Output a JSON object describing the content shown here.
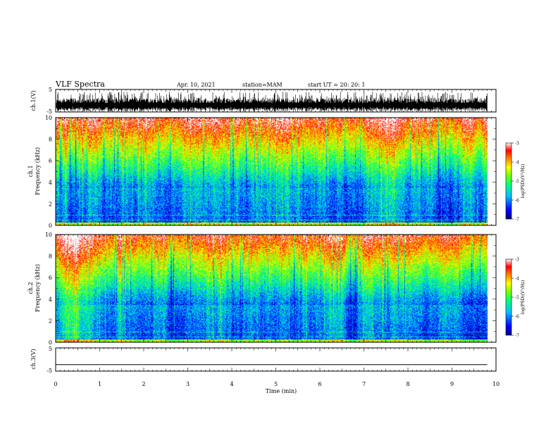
{
  "header": {
    "title": "VLF Spectra",
    "date": "Apr. 10, 2021",
    "station": "station=MAM",
    "start": "start  UT =   20: 20: 1"
  },
  "chart_data": [
    {
      "type": "line",
      "panel": "ch1-waveform",
      "ylabel": "ch.1(V)",
      "ylim": [
        -5,
        5
      ],
      "yticks": [
        "5",
        "-5"
      ],
      "xlim": [
        0,
        10
      ],
      "description_of_signal": "dense noisy waveform"
    },
    {
      "type": "heatmap",
      "panel": "ch1-spectrogram",
      "ylabel": "ch.1 Frequency (kHz)",
      "ylim": [
        0,
        10
      ],
      "yticks": [
        "0",
        "2",
        "4",
        "6",
        "8",
        "10"
      ],
      "xlim": [
        0,
        9.8
      ],
      "colorbar": {
        "label": "log(PSD)(V²/Hz)",
        "range": [
          -7,
          -3
        ],
        "ticks": [
          "-3",
          "-4",
          "-5",
          "-6",
          "-7"
        ]
      }
    },
    {
      "type": "heatmap",
      "panel": "ch2-spectrogram",
      "ylabel": "ch.2 Frequency (kHz)",
      "ylim": [
        0,
        10
      ],
      "yticks": [
        "0",
        "2",
        "4",
        "6",
        "8",
        "10"
      ],
      "xlim": [
        0,
        9.8
      ],
      "colorbar": {
        "label": "log(PSD)(V²/Hz)",
        "range": [
          -7,
          -3
        ],
        "ticks": [
          "-3",
          "-4",
          "-5",
          "-6",
          "-7"
        ]
      }
    },
    {
      "type": "line",
      "panel": "ch3-waveform",
      "ylabel": "ch.3(V)",
      "ylim": [
        -5,
        5
      ],
      "yticks": [
        "5",
        "-5"
      ],
      "series": [
        {
          "x": [
            0,
            9.8
          ],
          "values": [
            -2.2,
            -2.2
          ]
        }
      ]
    }
  ],
  "xaxis": {
    "label": "Time (min)",
    "ticks": [
      "0",
      "1",
      "2",
      "3",
      "4",
      "5",
      "6",
      "7",
      "8",
      "9",
      "10"
    ],
    "range": [
      0,
      10
    ]
  },
  "colors": {
    "colormap": [
      "#000080",
      "#0000ff",
      "#00c0ff",
      "#00ff80",
      "#80ff00",
      "#ffff00",
      "#ff8000",
      "#ff0000",
      "#ffffff"
    ]
  }
}
